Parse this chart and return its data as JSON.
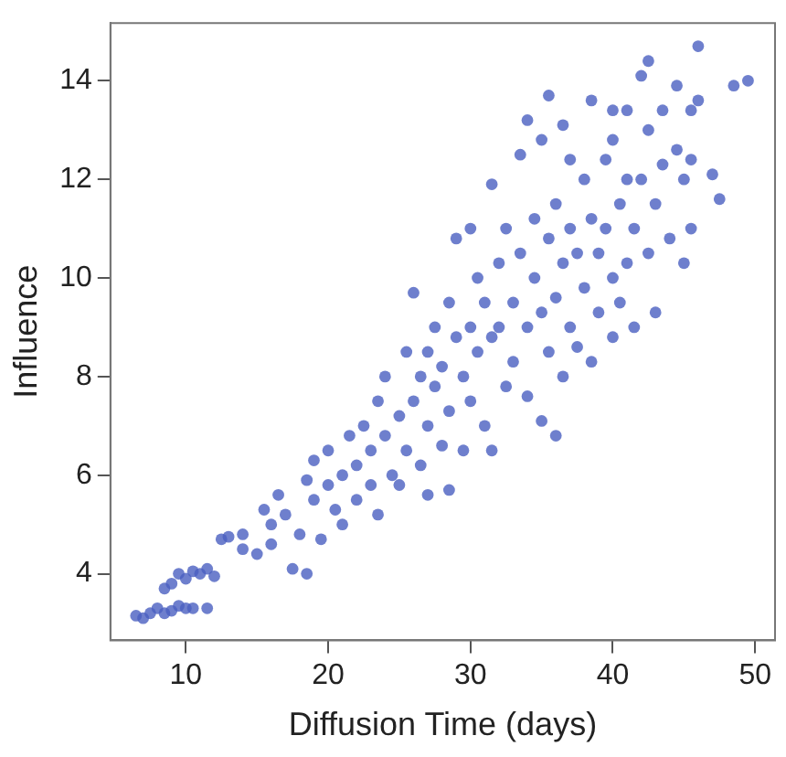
{
  "chart_data": {
    "type": "scatter",
    "xlabel": "Diffusion Time (days)",
    "ylabel": "Influence",
    "marker": "circle",
    "grid": false,
    "legend": false,
    "xlim": [
      4.7,
      51.4
    ],
    "ylim": [
      2.65,
      15.17
    ],
    "xticks": [
      10,
      20,
      30,
      40,
      50
    ],
    "yticks": [
      4,
      6,
      8,
      10,
      12,
      14
    ],
    "series": [
      {
        "color": "#4a5fc0",
        "x": [
          6.5,
          7,
          7.5,
          8,
          8.5,
          9,
          9.5,
          10,
          10.5,
          11.5,
          9,
          9.5,
          10,
          10.5,
          11,
          11.5,
          12,
          8.5,
          12.5,
          13,
          14,
          14,
          15,
          15.5,
          16,
          16,
          16.5,
          17,
          17.5,
          18,
          18.5,
          18.5,
          19,
          19,
          19.5,
          20,
          20,
          20.5,
          21,
          21,
          21.5,
          22,
          22,
          22.5,
          23,
          23,
          23.5,
          23.5,
          24,
          24,
          24.5,
          25,
          25,
          25.5,
          25.5,
          26,
          26,
          26.5,
          26.5,
          27,
          27,
          27,
          27.5,
          27.5,
          28,
          28,
          28.5,
          28.5,
          28.5,
          29,
          29,
          29.5,
          29.5,
          30,
          30,
          30,
          30.5,
          30.5,
          31,
          31,
          31.5,
          31.5,
          31.5,
          32,
          32,
          32.5,
          32.5,
          33,
          33,
          33.5,
          33.5,
          34,
          34,
          34,
          34.5,
          34.5,
          35,
          35,
          35,
          35.5,
          35.5,
          35.5,
          36,
          36,
          36,
          36.5,
          36.5,
          36.5,
          37,
          37,
          37,
          37.5,
          37.5,
          38,
          38,
          38.5,
          38.5,
          38.5,
          39,
          39,
          39.5,
          39.5,
          40,
          40,
          40,
          40,
          40.5,
          40.5,
          41,
          41,
          41,
          41.5,
          41.5,
          42,
          42,
          42.5,
          42.5,
          42.5,
          43,
          43,
          43.5,
          43.5,
          44,
          44.5,
          44.5,
          45,
          45,
          45.5,
          45.5,
          45.5,
          46,
          46,
          47,
          47.5,
          48.5,
          49.5
        ],
        "values": [
          3.15,
          3.1,
          3.2,
          3.3,
          3.2,
          3.25,
          3.35,
          3.3,
          3.3,
          3.3,
          3.8,
          4.0,
          3.9,
          4.05,
          4.0,
          4.1,
          3.95,
          3.7,
          4.7,
          4.75,
          4.5,
          4.8,
          4.4,
          5.3,
          5.0,
          4.6,
          5.6,
          5.2,
          4.1,
          4.8,
          4.0,
          5.9,
          5.5,
          6.3,
          4.7,
          5.8,
          6.5,
          5.3,
          6.0,
          5.0,
          6.8,
          6.2,
          5.5,
          7.0,
          6.5,
          5.8,
          7.5,
          5.2,
          6.8,
          8.0,
          6.0,
          7.2,
          5.8,
          8.5,
          6.5,
          7.5,
          9.7,
          8.0,
          6.2,
          8.5,
          7.0,
          5.6,
          9.0,
          7.8,
          8.2,
          6.6,
          9.5,
          7.3,
          5.7,
          8.8,
          10.8,
          8.0,
          6.5,
          9.0,
          11.0,
          7.5,
          10.0,
          8.5,
          9.5,
          7.0,
          11.9,
          8.8,
          6.5,
          10.3,
          9.0,
          11.0,
          7.8,
          9.5,
          8.3,
          12.5,
          10.5,
          13.2,
          9.0,
          7.6,
          11.2,
          10.0,
          12.8,
          9.3,
          7.1,
          13.7,
          10.8,
          8.5,
          11.5,
          9.6,
          6.8,
          13.1,
          10.3,
          8.0,
          12.4,
          11.0,
          9.0,
          10.5,
          8.6,
          12.0,
          9.8,
          13.6,
          11.2,
          8.3,
          10.5,
          9.3,
          12.4,
          11.0,
          13.4,
          12.8,
          10.0,
          8.8,
          11.5,
          9.5,
          13.4,
          12.0,
          10.3,
          11.0,
          9.0,
          14.1,
          12.0,
          14.4,
          13.0,
          10.5,
          11.5,
          9.3,
          13.4,
          12.3,
          10.8,
          13.9,
          12.6,
          12.0,
          10.3,
          13.4,
          12.4,
          11.0,
          14.7,
          13.6,
          12.1,
          11.6,
          13.9,
          14.0
        ]
      }
    ]
  }
}
